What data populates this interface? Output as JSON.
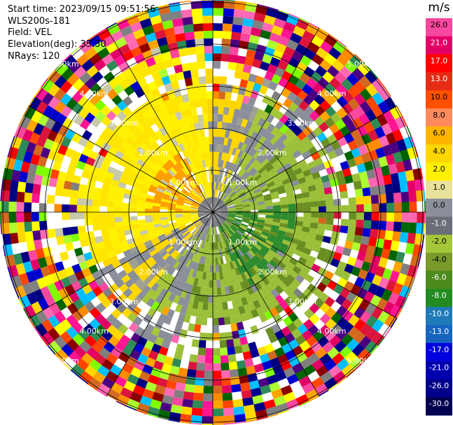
{
  "header": {
    "start_time": "Start time: 2023/09/15 09:51:56",
    "instrument": "WLS200s-181",
    "field": "Field: VEL",
    "elevation": "Elevation(deg): 35.30",
    "nrays": "NRays: 120"
  },
  "colorbar": {
    "unit": "m/s",
    "labels": [
      "26.0",
      "21.0",
      "17.0",
      "13.0",
      "10.0",
      "8.0",
      "6.0",
      "4.0",
      "2.0",
      "1.0",
      "0.0",
      "-1.0",
      "-2.0",
      "-4.0",
      "-6.0",
      "-8.0",
      "-10.0",
      "-13.0",
      "-17.0",
      "-21.0",
      "-26.0",
      "-30.0"
    ],
    "colors": [
      "#f7f7f7",
      "#f7479e",
      "#e30066",
      "#ff0000",
      "#e62c14",
      "#ff5000",
      "#ff8a5e",
      "#ffb400",
      "#ffd700",
      "#fff100",
      "#e8e29a",
      "#8a8f9a",
      "#6b6e76",
      "#a4c639",
      "#7a9a2a",
      "#4d8a1c",
      "#228b22",
      "#1f7ab8",
      "#1565c0",
      "#0000e0",
      "#0000b0",
      "#00008b",
      "#000050"
    ]
  },
  "range_rings": [
    {
      "range_km": 1,
      "label": "1.00km"
    },
    {
      "range_km": 2,
      "label": "2.00km"
    },
    {
      "range_km": 3,
      "label": "3.00km"
    },
    {
      "range_km": 4,
      "label": "4.00km"
    },
    {
      "range_km": 5,
      "label": "5.00km"
    }
  ]
}
